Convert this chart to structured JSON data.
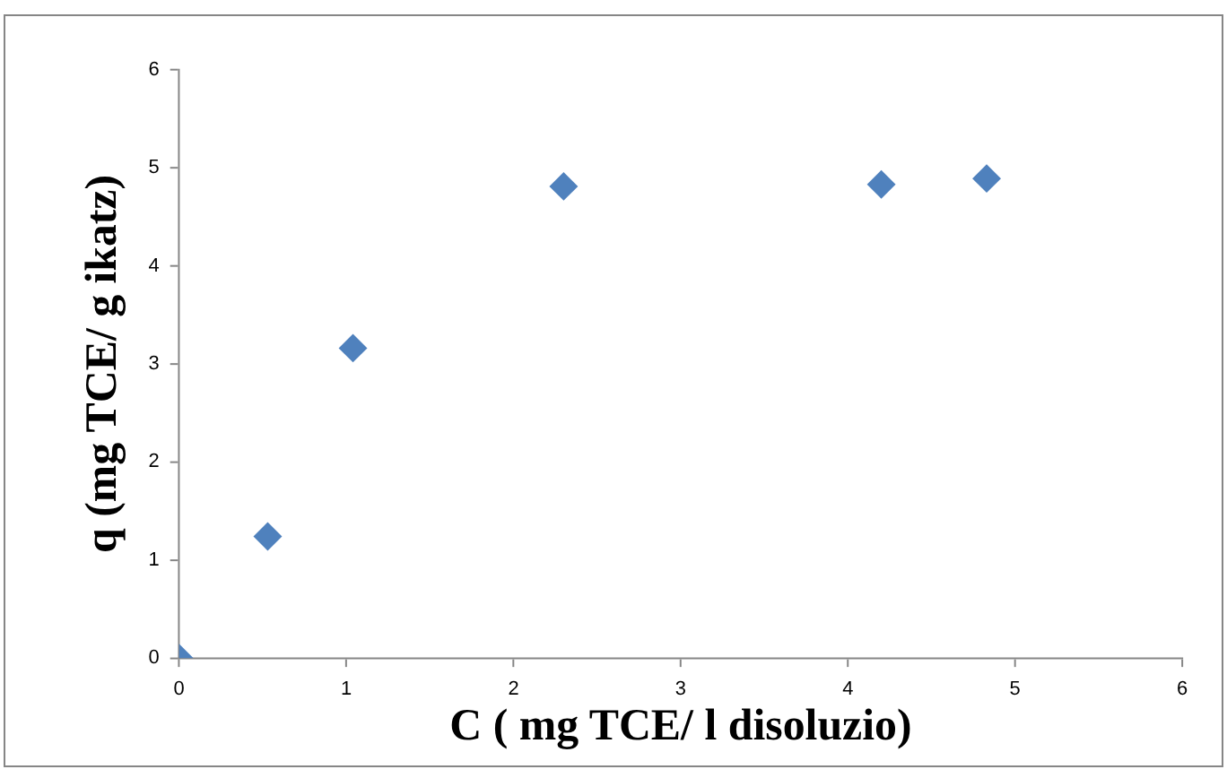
{
  "chart_data": {
    "type": "scatter",
    "xlabel": "C ( mg TCE/ l disoluzio)",
    "ylabel": "q (mg TCE/ g ikatz)",
    "x": [
      0,
      0.53,
      1.04,
      2.3,
      4.2,
      4.83
    ],
    "series": [
      {
        "color": "#4f81bd",
        "values": [
          0,
          1.24,
          3.16,
          4.81,
          4.83,
          4.89
        ]
      }
    ],
    "xlim": [
      0,
      6
    ],
    "xticks": [
      0,
      1,
      2,
      3,
      4,
      5,
      6
    ],
    "ylim": [
      0,
      6
    ],
    "yticks": [
      0,
      1,
      2,
      3,
      4,
      5,
      6
    ],
    "marker": "diamond",
    "grid": false,
    "legend": false
  }
}
